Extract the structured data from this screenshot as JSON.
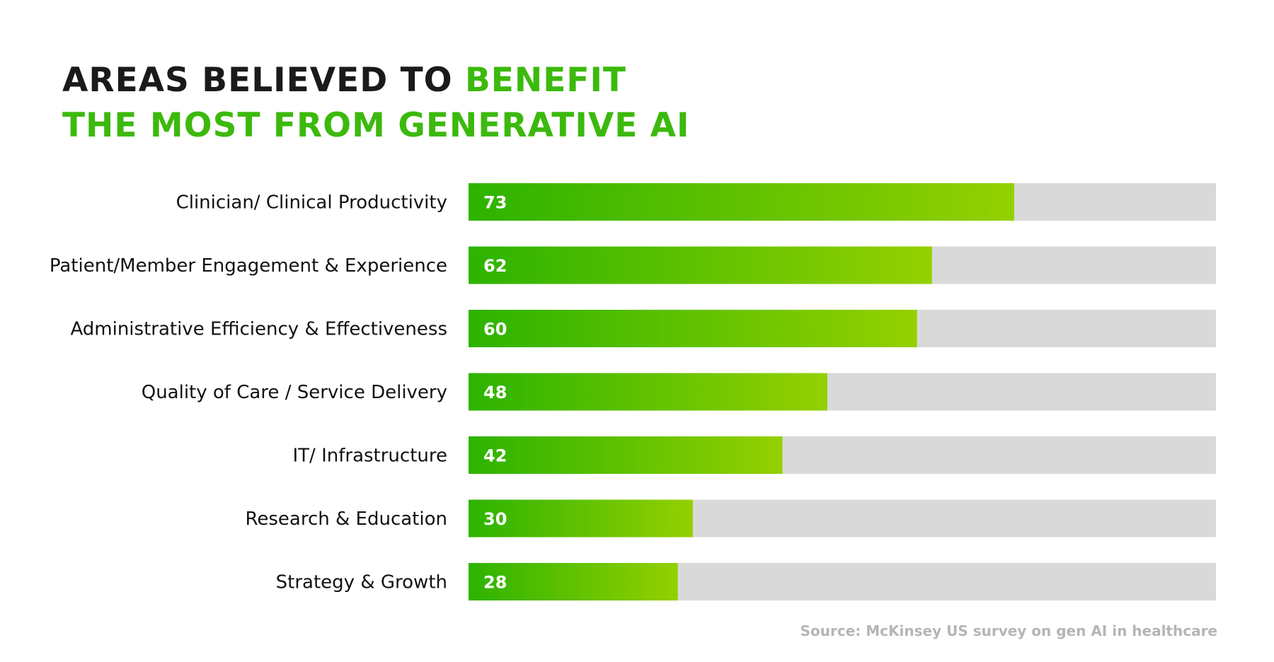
{
  "title": {
    "line1_dark": "AREAS BELIEVED TO ",
    "line1_accent": "BENEFIT",
    "line2_accent": "THE MOST FROM GENERATIVE AI"
  },
  "source": "Source: McKinsey US survey on gen AI in healthcare",
  "colors": {
    "accent": "#3cb90d",
    "bar_start": "#2db300",
    "bar_end": "#94d000",
    "track": "#d9d9d9",
    "title_dark": "#1a1a1a",
    "source_text": "#b5b5b5"
  },
  "chart_data": {
    "type": "bar",
    "orientation": "horizontal",
    "title": "Areas believed to benefit the most from generative AI",
    "categories": [
      "Clinician/ Clinical Productivity",
      "Patient/Member Engagement & Experience",
      "Administrative Efficiency & Effectiveness",
      "Quality of Care / Service Delivery",
      "IT/ Infrastructure",
      "Research & Education",
      "Strategy & Growth"
    ],
    "values": [
      73,
      62,
      60,
      48,
      42,
      30,
      28
    ],
    "xlim": [
      0,
      100
    ],
    "xlabel": "",
    "ylabel": "",
    "grid": false,
    "data_labels": true
  }
}
